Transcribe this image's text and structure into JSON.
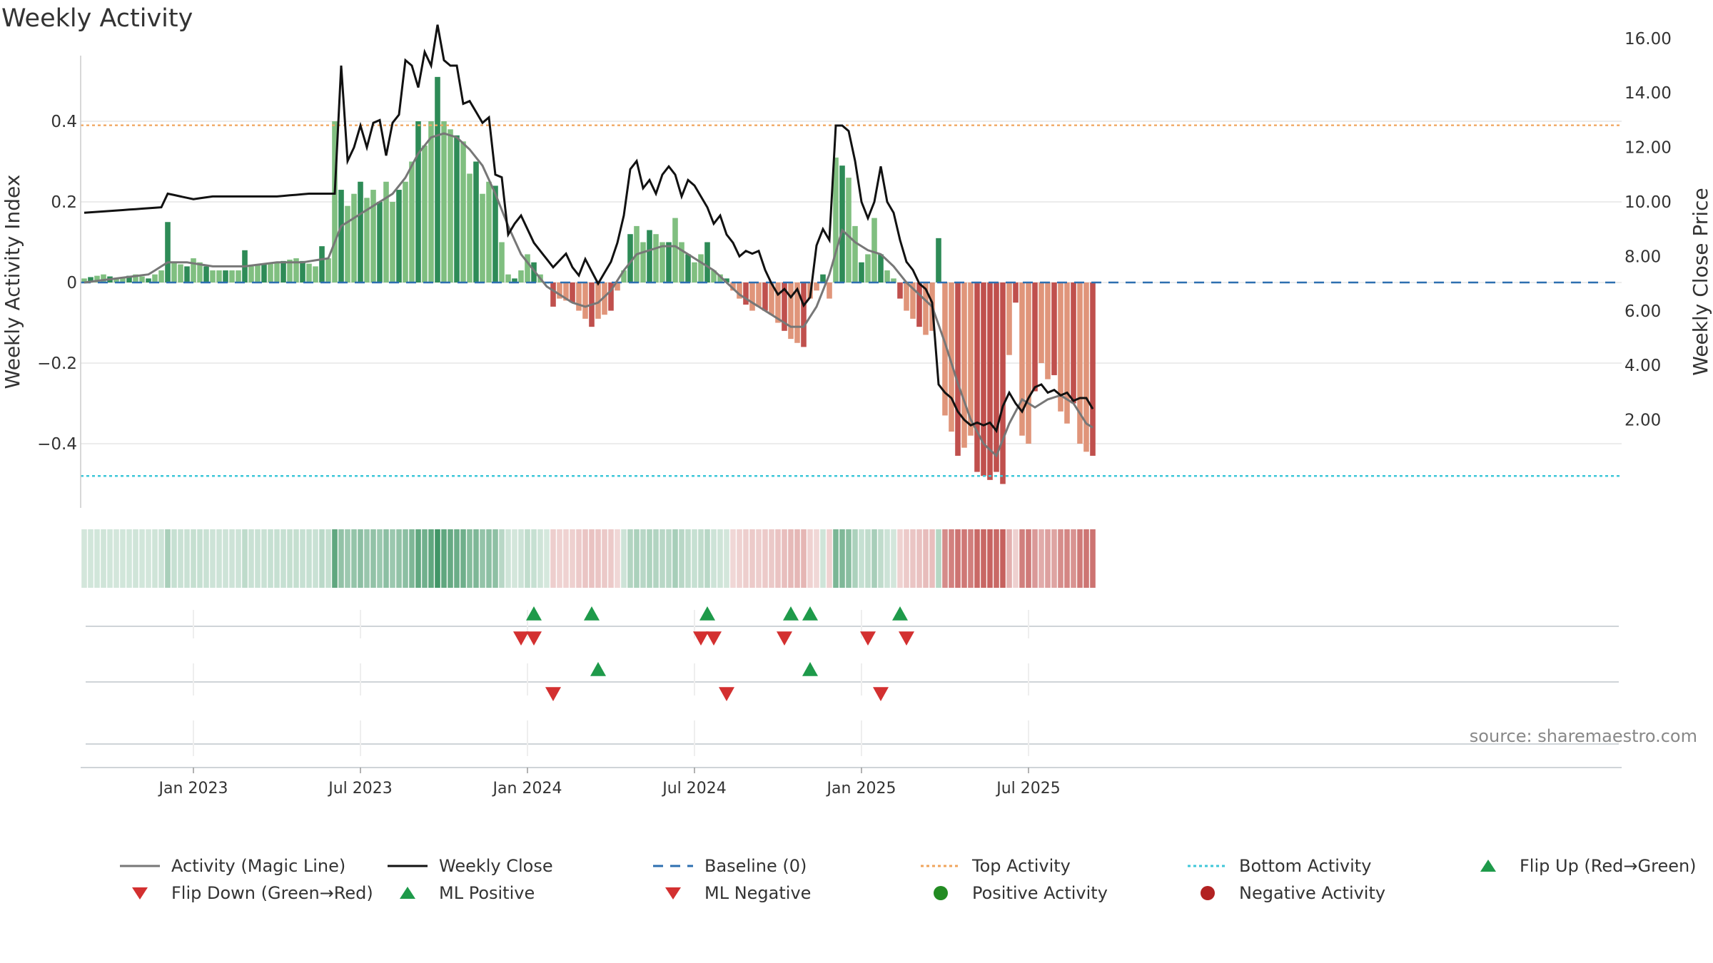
{
  "title": "Weekly Activity",
  "source_label": "source: sharemaestro.com",
  "colors": {
    "pos_strong": "#2e8b57",
    "pos_light": "#80bf80",
    "neg_strong": "#c0504d",
    "neg_light": "#e0957a",
    "magic_line": "#777777",
    "close_line": "#111111",
    "baseline": "#2d6fb0",
    "top_line": "#f0a45c",
    "bottom_line": "#3ec7d8",
    "flip_up": "#1e9a4a",
    "flip_down": "#d33030",
    "grid": "#e6e6e6"
  },
  "legend": [
    {
      "label": "Activity (Magic Line)",
      "symbol": "line-solid",
      "color": "#777777"
    },
    {
      "label": "Weekly Close",
      "symbol": "line-solid",
      "color": "#111111"
    },
    {
      "label": "Baseline (0)",
      "symbol": "line-dash",
      "color": "#2d6fb0"
    },
    {
      "label": "Top Activity",
      "symbol": "line-dot",
      "color": "#f0a45c"
    },
    {
      "label": "Bottom Activity",
      "symbol": "line-dot",
      "color": "#3ec7d8"
    },
    {
      "label": "Flip Up (Red→Green)",
      "symbol": "triangle-up",
      "color": "#1e9a4a"
    },
    {
      "label": "Flip Down (Green→Red)",
      "symbol": "triangle-down",
      "color": "#d33030"
    },
    {
      "label": "ML Positive",
      "symbol": "triangle-up",
      "color": "#1e9a4a"
    },
    {
      "label": "ML Negative",
      "symbol": "triangle-down",
      "color": "#d33030"
    },
    {
      "label": "Positive Activity",
      "symbol": "circle",
      "color": "#228b22"
    },
    {
      "label": "Negative Activity",
      "symbol": "circle",
      "color": "#b22222"
    }
  ],
  "chart_data": {
    "type": "bar",
    "title": "Weekly Activity",
    "ylabel_left": "Weekly Activity Index",
    "ylabel_right": "Weekly Close Price",
    "ylim_left": [
      -0.55,
      0.55
    ],
    "ylim_right": [
      1.0,
      17.5
    ],
    "yticks_left": [
      {
        "value": 0.4,
        "label": "0.4"
      },
      {
        "value": 0.2,
        "label": "0.2"
      },
      {
        "value": 0,
        "label": "0"
      },
      {
        "value": -0.2,
        "label": "−0.2"
      },
      {
        "value": -0.4,
        "label": "−0.4"
      }
    ],
    "yticks_right": [
      {
        "value": 16,
        "label": "16.00"
      },
      {
        "value": 14,
        "label": "14.00"
      },
      {
        "value": 12,
        "label": "12.00"
      },
      {
        "value": 10,
        "label": "10.00"
      },
      {
        "value": 8,
        "label": "8.00"
      },
      {
        "value": 6,
        "label": "6.00"
      },
      {
        "value": 4,
        "label": "4.00"
      },
      {
        "value": 2,
        "label": "2.00"
      }
    ],
    "xticks": [
      {
        "week": 17,
        "label": "Jan 2023"
      },
      {
        "week": 43,
        "label": "Jul 2023"
      },
      {
        "week": 69,
        "label": "Jan 2024"
      },
      {
        "week": 95,
        "label": "Jul 2024"
      },
      {
        "week": 121,
        "label": "Jan 2025"
      },
      {
        "week": 147,
        "label": "Jul 2025"
      }
    ],
    "top_activity": 0.39,
    "bottom_activity": -0.48,
    "baseline": 0,
    "weeks": 158,
    "activity_keyframes": [
      [
        0,
        0.01
      ],
      [
        3,
        0.02
      ],
      [
        5,
        0.01
      ],
      [
        8,
        0.02
      ],
      [
        10,
        0.01
      ],
      [
        12,
        0.03
      ],
      [
        13,
        0.15
      ],
      [
        14,
        0.05
      ],
      [
        16,
        0.04
      ],
      [
        17,
        0.06
      ],
      [
        20,
        0.03
      ],
      [
        24,
        0.03
      ],
      [
        25,
        0.08
      ],
      [
        26,
        0.04
      ],
      [
        30,
        0.05
      ],
      [
        33,
        0.06
      ],
      [
        36,
        0.04
      ],
      [
        37,
        0.09
      ],
      [
        38,
        0.06
      ],
      [
        39,
        0.4
      ],
      [
        40,
        0.23
      ],
      [
        41,
        0.19
      ],
      [
        43,
        0.25
      ],
      [
        44,
        0.21
      ],
      [
        45,
        0.23
      ],
      [
        46,
        0.2
      ],
      [
        47,
        0.25
      ],
      [
        48,
        0.2
      ],
      [
        49,
        0.23
      ],
      [
        50,
        0.25
      ],
      [
        51,
        0.3
      ],
      [
        52,
        0.4
      ],
      [
        53,
        0.34
      ],
      [
        54,
        0.4
      ],
      [
        55,
        0.51
      ],
      [
        56,
        0.4
      ],
      [
        57,
        0.38
      ],
      [
        59,
        0.35
      ],
      [
        60,
        0.27
      ],
      [
        61,
        0.3
      ],
      [
        62,
        0.22
      ],
      [
        63,
        0.25
      ],
      [
        64,
        0.24
      ],
      [
        65,
        0.1
      ],
      [
        66,
        0.02
      ],
      [
        67,
        0.01
      ],
      [
        68,
        0.03
      ],
      [
        69,
        0.07
      ],
      [
        70,
        0.05
      ],
      [
        71,
        0.02
      ],
      [
        72,
        0.0
      ],
      [
        73,
        -0.06
      ],
      [
        74,
        -0.04
      ],
      [
        76,
        -0.05
      ],
      [
        77,
        -0.07
      ],
      [
        79,
        -0.11
      ],
      [
        80,
        -0.09
      ],
      [
        82,
        -0.07
      ],
      [
        83,
        -0.02
      ],
      [
        84,
        0.03
      ],
      [
        85,
        0.12
      ],
      [
        86,
        0.14
      ],
      [
        87,
        0.1
      ],
      [
        88,
        0.13
      ],
      [
        89,
        0.12
      ],
      [
        90,
        0.1
      ],
      [
        91,
        0.1
      ],
      [
        92,
        0.16
      ],
      [
        93,
        0.1
      ],
      [
        94,
        0.07
      ],
      [
        95,
        0.05
      ],
      [
        96,
        0.07
      ],
      [
        97,
        0.1
      ],
      [
        98,
        0.03
      ],
      [
        99,
        0.02
      ],
      [
        100,
        0.01
      ],
      [
        101,
        -0.02
      ],
      [
        102,
        -0.04
      ],
      [
        104,
        -0.07
      ],
      [
        105,
        -0.06
      ],
      [
        107,
        -0.08
      ],
      [
        108,
        -0.1
      ],
      [
        109,
        -0.12
      ],
      [
        110,
        -0.14
      ],
      [
        111,
        -0.15
      ],
      [
        112,
        -0.16
      ],
      [
        113,
        -0.04
      ],
      [
        114,
        -0.02
      ],
      [
        115,
        0.02
      ],
      [
        116,
        -0.04
      ],
      [
        117,
        0.31
      ],
      [
        118,
        0.29
      ],
      [
        119,
        0.26
      ],
      [
        120,
        0.14
      ],
      [
        121,
        0.05
      ],
      [
        122,
        0.07
      ],
      [
        123,
        0.16
      ],
      [
        124,
        0.07
      ],
      [
        125,
        0.03
      ],
      [
        126,
        0.01
      ],
      [
        127,
        -0.04
      ],
      [
        128,
        -0.07
      ],
      [
        129,
        -0.09
      ],
      [
        130,
        -0.11
      ],
      [
        131,
        -0.13
      ],
      [
        132,
        -0.12
      ],
      [
        133,
        0.11
      ],
      [
        134,
        -0.33
      ],
      [
        135,
        -0.37
      ],
      [
        136,
        -0.43
      ],
      [
        137,
        -0.41
      ],
      [
        138,
        -0.38
      ],
      [
        139,
        -0.47
      ],
      [
        140,
        -0.48
      ],
      [
        141,
        -0.49
      ],
      [
        142,
        -0.47
      ],
      [
        143,
        -0.5
      ],
      [
        144,
        -0.18
      ],
      [
        145,
        -0.05
      ],
      [
        146,
        -0.38
      ],
      [
        147,
        -0.4
      ],
      [
        148,
        -0.27
      ],
      [
        149,
        -0.2
      ],
      [
        150,
        -0.24
      ],
      [
        151,
        -0.23
      ],
      [
        152,
        -0.32
      ],
      [
        153,
        -0.35
      ],
      [
        154,
        -0.3
      ],
      [
        155,
        -0.4
      ],
      [
        156,
        -0.42
      ],
      [
        157,
        -0.43
      ],
      [
        158,
        -0.43
      ],
      [
        159,
        -0.33
      ]
    ],
    "close_keyframes": [
      [
        0,
        9.6
      ],
      [
        6,
        9.7
      ],
      [
        12,
        9.8
      ],
      [
        13,
        10.3
      ],
      [
        17,
        10.1
      ],
      [
        20,
        10.2
      ],
      [
        25,
        10.2
      ],
      [
        30,
        10.2
      ],
      [
        35,
        10.3
      ],
      [
        39,
        10.3
      ],
      [
        40,
        15.0
      ],
      [
        41,
        11.5
      ],
      [
        42,
        12.0
      ],
      [
        43,
        12.8
      ],
      [
        44,
        12.0
      ],
      [
        45,
        12.9
      ],
      [
        46,
        13.0
      ],
      [
        47,
        11.7
      ],
      [
        48,
        12.9
      ],
      [
        49,
        13.2
      ],
      [
        50,
        15.2
      ],
      [
        51,
        15.0
      ],
      [
        52,
        14.2
      ],
      [
        53,
        15.5
      ],
      [
        54,
        15.0
      ],
      [
        55,
        16.5
      ],
      [
        56,
        15.2
      ],
      [
        57,
        15.0
      ],
      [
        58,
        15.0
      ],
      [
        59,
        13.6
      ],
      [
        60,
        13.7
      ],
      [
        61,
        13.3
      ],
      [
        62,
        12.9
      ],
      [
        63,
        13.1
      ],
      [
        64,
        11.0
      ],
      [
        65,
        10.9
      ],
      [
        66,
        8.8
      ],
      [
        67,
        9.2
      ],
      [
        68,
        9.5
      ],
      [
        69,
        9.0
      ],
      [
        70,
        8.5
      ],
      [
        71,
        8.2
      ],
      [
        72,
        7.9
      ],
      [
        73,
        7.6
      ],
      [
        75,
        8.1
      ],
      [
        76,
        7.6
      ],
      [
        77,
        7.3
      ],
      [
        78,
        7.9
      ],
      [
        80,
        7.0
      ],
      [
        82,
        7.8
      ],
      [
        83,
        8.5
      ],
      [
        84,
        9.5
      ],
      [
        85,
        11.2
      ],
      [
        86,
        11.5
      ],
      [
        87,
        10.5
      ],
      [
        88,
        10.8
      ],
      [
        89,
        10.3
      ],
      [
        90,
        11.0
      ],
      [
        91,
        11.3
      ],
      [
        92,
        11.0
      ],
      [
        93,
        10.2
      ],
      [
        94,
        10.8
      ],
      [
        95,
        10.6
      ],
      [
        96,
        10.2
      ],
      [
        97,
        9.8
      ],
      [
        98,
        9.2
      ],
      [
        99,
        9.5
      ],
      [
        100,
        8.8
      ],
      [
        101,
        8.5
      ],
      [
        102,
        8.0
      ],
      [
        103,
        8.2
      ],
      [
        104,
        8.1
      ],
      [
        105,
        8.2
      ],
      [
        106,
        7.5
      ],
      [
        107,
        7.0
      ],
      [
        108,
        6.6
      ],
      [
        109,
        6.8
      ],
      [
        110,
        6.5
      ],
      [
        111,
        6.8
      ],
      [
        112,
        6.2
      ],
      [
        113,
        6.5
      ],
      [
        114,
        8.4
      ],
      [
        115,
        9.0
      ],
      [
        116,
        8.6
      ],
      [
        117,
        12.8
      ],
      [
        118,
        12.8
      ],
      [
        119,
        12.6
      ],
      [
        120,
        11.5
      ],
      [
        121,
        10.0
      ],
      [
        122,
        9.4
      ],
      [
        123,
        10.0
      ],
      [
        124,
        11.3
      ],
      [
        125,
        10.0
      ],
      [
        126,
        9.6
      ],
      [
        127,
        8.6
      ],
      [
        128,
        7.8
      ],
      [
        129,
        7.5
      ],
      [
        130,
        7.0
      ],
      [
        131,
        6.8
      ],
      [
        132,
        6.3
      ],
      [
        133,
        3.3
      ],
      [
        134,
        3.0
      ],
      [
        135,
        2.8
      ],
      [
        136,
        2.3
      ],
      [
        137,
        2.0
      ],
      [
        138,
        1.8
      ],
      [
        139,
        1.9
      ],
      [
        140,
        1.8
      ],
      [
        141,
        1.9
      ],
      [
        142,
        1.6
      ],
      [
        143,
        2.5
      ],
      [
        144,
        3.0
      ],
      [
        145,
        2.6
      ],
      [
        146,
        2.3
      ],
      [
        147,
        2.8
      ],
      [
        148,
        3.2
      ],
      [
        149,
        3.3
      ],
      [
        150,
        3.0
      ],
      [
        151,
        3.1
      ],
      [
        152,
        2.9
      ],
      [
        153,
        3.0
      ],
      [
        154,
        2.7
      ],
      [
        155,
        2.8
      ],
      [
        156,
        2.8
      ],
      [
        157,
        2.4
      ],
      [
        158,
        2.3
      ],
      [
        159,
        2.6
      ]
    ],
    "magic_keyframes": [
      [
        0,
        0.0
      ],
      [
        5,
        0.01
      ],
      [
        10,
        0.02
      ],
      [
        13,
        0.05
      ],
      [
        16,
        0.05
      ],
      [
        20,
        0.04
      ],
      [
        25,
        0.04
      ],
      [
        30,
        0.05
      ],
      [
        34,
        0.05
      ],
      [
        38,
        0.06
      ],
      [
        40,
        0.14
      ],
      [
        42,
        0.16
      ],
      [
        44,
        0.18
      ],
      [
        46,
        0.2
      ],
      [
        48,
        0.22
      ],
      [
        50,
        0.26
      ],
      [
        52,
        0.32
      ],
      [
        54,
        0.36
      ],
      [
        56,
        0.37
      ],
      [
        58,
        0.36
      ],
      [
        60,
        0.33
      ],
      [
        62,
        0.29
      ],
      [
        64,
        0.22
      ],
      [
        66,
        0.14
      ],
      [
        68,
        0.07
      ],
      [
        70,
        0.03
      ],
      [
        72,
        -0.01
      ],
      [
        74,
        -0.03
      ],
      [
        76,
        -0.05
      ],
      [
        78,
        -0.06
      ],
      [
        80,
        -0.05
      ],
      [
        82,
        -0.02
      ],
      [
        84,
        0.03
      ],
      [
        86,
        0.07
      ],
      [
        88,
        0.08
      ],
      [
        90,
        0.09
      ],
      [
        92,
        0.09
      ],
      [
        94,
        0.07
      ],
      [
        96,
        0.05
      ],
      [
        98,
        0.03
      ],
      [
        100,
        0.0
      ],
      [
        102,
        -0.03
      ],
      [
        104,
        -0.05
      ],
      [
        106,
        -0.07
      ],
      [
        108,
        -0.09
      ],
      [
        110,
        -0.11
      ],
      [
        112,
        -0.11
      ],
      [
        114,
        -0.06
      ],
      [
        116,
        0.02
      ],
      [
        118,
        0.13
      ],
      [
        120,
        0.1
      ],
      [
        122,
        0.08
      ],
      [
        124,
        0.07
      ],
      [
        126,
        0.04
      ],
      [
        128,
        0.0
      ],
      [
        130,
        -0.03
      ],
      [
        132,
        -0.06
      ],
      [
        134,
        -0.15
      ],
      [
        136,
        -0.25
      ],
      [
        138,
        -0.34
      ],
      [
        140,
        -0.4
      ],
      [
        142,
        -0.43
      ],
      [
        144,
        -0.35
      ],
      [
        146,
        -0.29
      ],
      [
        148,
        -0.31
      ],
      [
        150,
        -0.29
      ],
      [
        152,
        -0.28
      ],
      [
        154,
        -0.3
      ],
      [
        156,
        -0.35
      ],
      [
        158,
        -0.37
      ],
      [
        159,
        -0.37
      ]
    ],
    "flip_up_weeks": [
      70,
      79,
      97,
      110,
      113,
      127
    ],
    "flip_down_weeks": [
      68,
      70,
      96,
      98,
      109,
      122,
      128
    ],
    "ml_positive_weeks": [
      80,
      113
    ],
    "ml_negative_weeks": [
      73,
      100,
      124
    ]
  }
}
